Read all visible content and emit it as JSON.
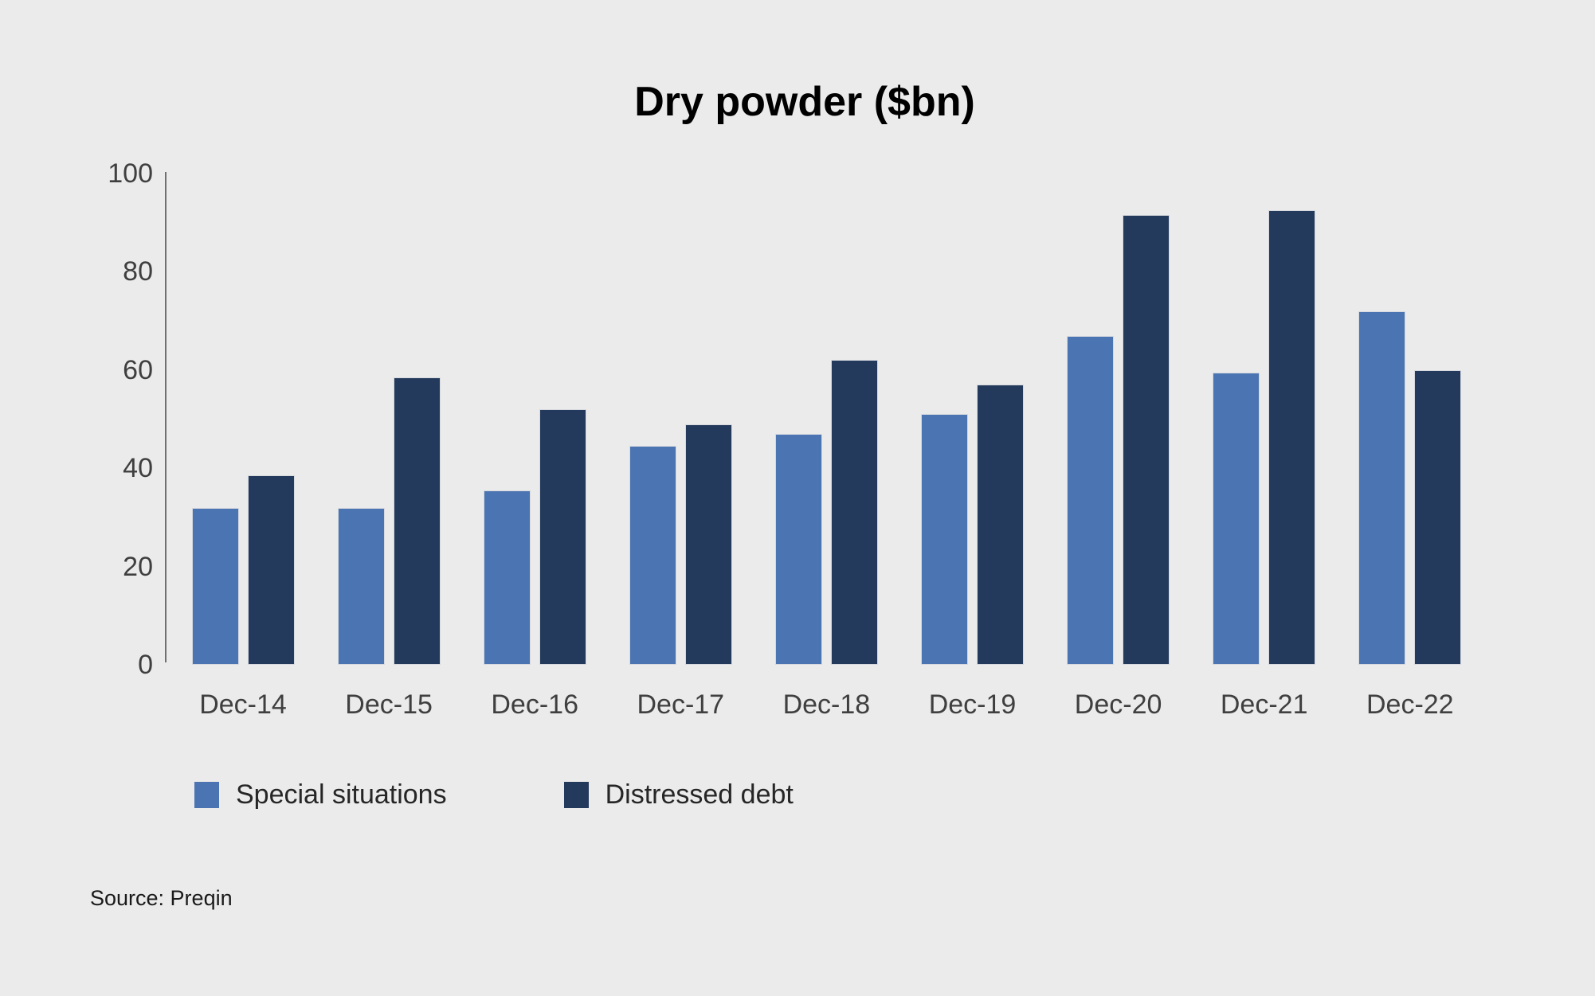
{
  "title": "Dry powder ($bn)",
  "source_note": "Source: Preqin",
  "legend": [
    {
      "label": "Special situations",
      "color": "#4B74B2"
    },
    {
      "label": "Distressed debt",
      "color": "#243A5C"
    }
  ],
  "colors": {
    "background": "#EBEBEB",
    "axis_line": "#707070",
    "tick_text": "#3F3F3F",
    "title_text": "#000000",
    "bar_edge": "#D5D8DE",
    "special_situations": "#4B74B2",
    "distressed_debt": "#243A5C"
  },
  "chart_data": {
    "type": "bar",
    "title": "Dry powder ($bn)",
    "xlabel": "",
    "ylabel": "",
    "categories": [
      "Dec-14",
      "Dec-15",
      "Dec-16",
      "Dec-17",
      "Dec-18",
      "Dec-19",
      "Dec-20",
      "Dec-21",
      "Dec-22"
    ],
    "series": [
      {
        "name": "Special situations",
        "color": "#4B74B2",
        "values": [
          32,
          32,
          35.5,
          44.5,
          47,
          51,
          67,
          59.5,
          72
        ]
      },
      {
        "name": "Distressed debt",
        "color": "#243A5C",
        "values": [
          38.5,
          58.5,
          52,
          49,
          62,
          57,
          91.5,
          92.5,
          60
        ]
      }
    ],
    "ylim": [
      0,
      100
    ],
    "yticks": [
      0,
      20,
      40,
      60,
      80,
      100
    ],
    "grid": false,
    "legend_position": "bottom",
    "source": "Source: Preqin"
  }
}
